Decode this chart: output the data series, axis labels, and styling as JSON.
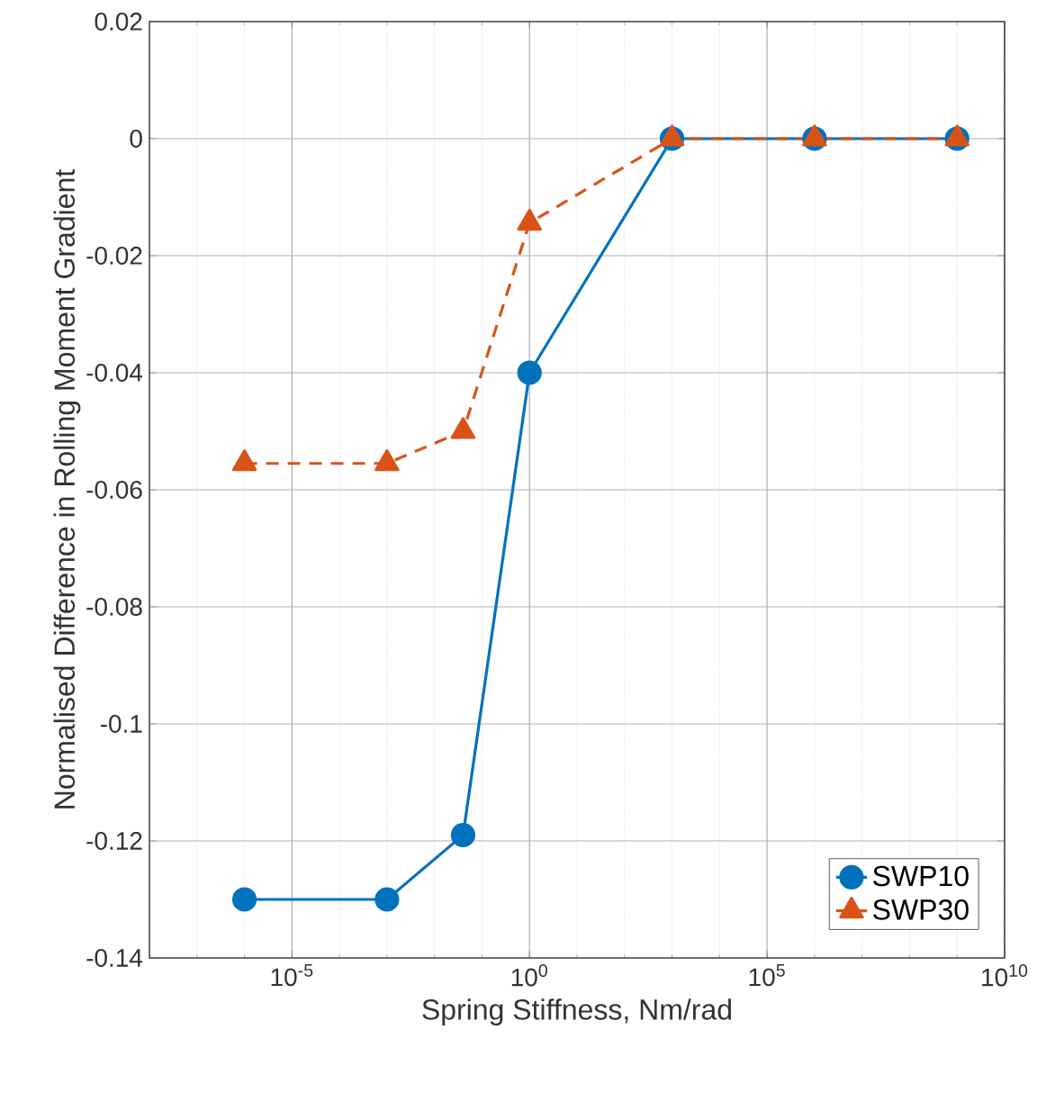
{
  "chart_data": {
    "type": "line",
    "xlabel": "Spring Stiffness, Nm/rad",
    "ylabel": "Normalised Difference in Rolling Moment Gradient",
    "log": "x",
    "xlim": [
      1e-08,
      10000000000.0
    ],
    "xticks": [
      {
        "value": 1e-05,
        "label": "10$^{-5}$"
      },
      {
        "value": 1,
        "label": "10$^{0}$"
      },
      {
        "value": 100000.0,
        "label": "10$^{5}$"
      },
      {
        "value": 10000000000.0,
        "label": "10$^{10}$"
      }
    ],
    "ylim": [
      -0.14,
      0.02
    ],
    "yticks": [
      -0.14,
      -0.12,
      -0.1,
      -0.08,
      -0.06,
      -0.04,
      -0.02,
      0,
      0.02
    ],
    "grid": true,
    "legend": "bottom right",
    "series": [
      {
        "name": "SWP10",
        "color": "#0072bd",
        "marker": "circle",
        "line_style": "solid",
        "x": [
          1e-06,
          0.001,
          0.04,
          1,
          1000.0,
          1000000.0,
          1000000000.0
        ],
        "values": [
          -0.13,
          -0.13,
          -0.119,
          -0.04,
          0,
          0,
          0
        ]
      },
      {
        "name": "SWP30",
        "color": "#d95319",
        "marker": "triangle",
        "line_style": "dashed",
        "x": [
          1e-06,
          0.001,
          0.04,
          1,
          1000.0,
          1000000.0,
          1000000000.0
        ],
        "values": [
          -0.0555,
          -0.0555,
          -0.05,
          -0.0144,
          0,
          0,
          0
        ]
      }
    ]
  }
}
